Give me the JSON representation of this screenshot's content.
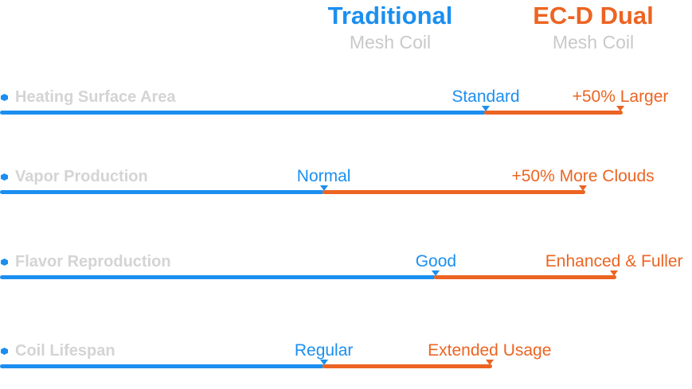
{
  "chart_data": {
    "type": "bar",
    "columns": [
      {
        "name": "Traditional",
        "subtitle": "Mesh Coil",
        "color": "#1b8ff0"
      },
      {
        "name": "EC-D Dual",
        "subtitle": "Mesh Coil",
        "color": "#ec6422"
      }
    ],
    "rows": [
      {
        "metric": "Heating Surface Area",
        "traditional_label": "Standard",
        "ecd_label": "+50% Larger",
        "traditional_value": 78,
        "ecd_value": 100
      },
      {
        "metric": "Vapor Production",
        "traditional_label": "Normal",
        "ecd_label": "+50% More Clouds",
        "traditional_value": 52,
        "ecd_value": 94
      },
      {
        "metric": "Flavor Reproduction",
        "traditional_label": "Good",
        "ecd_label": "Enhanced & Fuller",
        "traditional_value": 70,
        "ecd_value": 99
      },
      {
        "metric": "Coil Lifespan",
        "traditional_label": "Regular",
        "ecd_label": "Extended Usage",
        "traditional_value": 52,
        "ecd_value": 79
      }
    ],
    "xlim": [
      0,
      100
    ],
    "legend": "top-right",
    "grid": false
  }
}
